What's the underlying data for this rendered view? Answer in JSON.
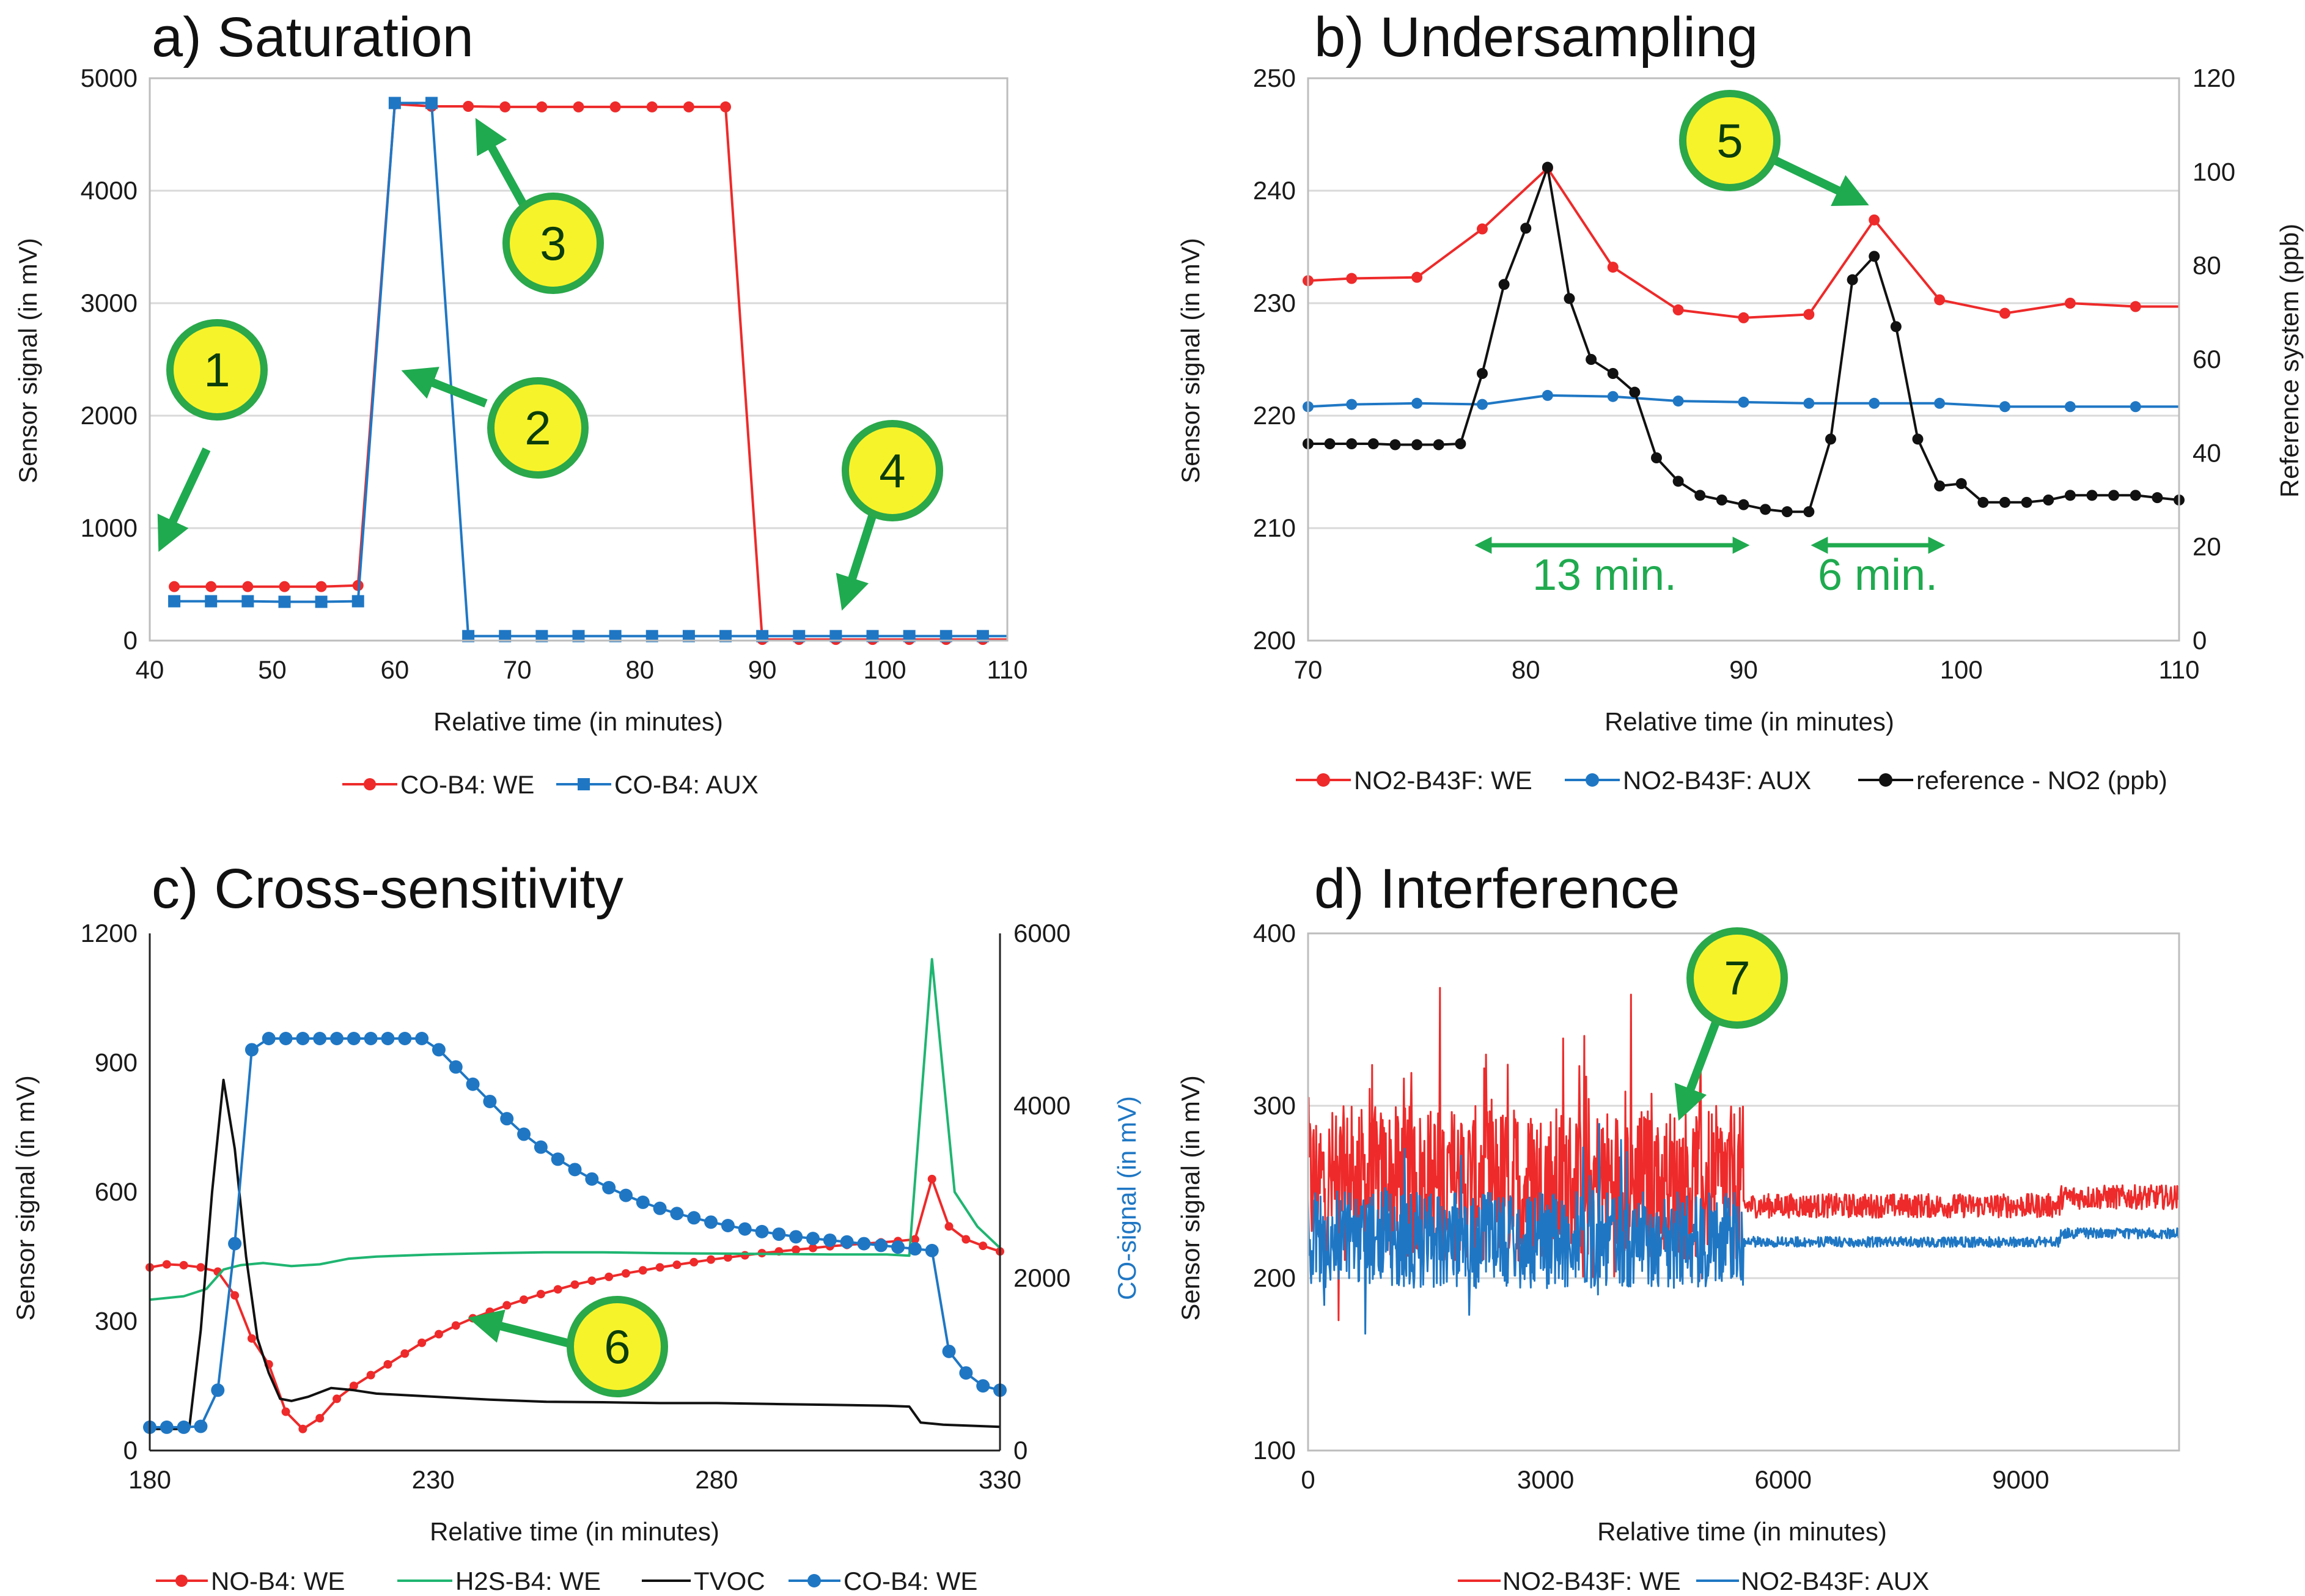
{
  "colors": {
    "red": "#ee2a2a",
    "blue": "#1f77c4",
    "black": "#111111",
    "green_line": "#1fb571",
    "arrow": "#1faa4f",
    "badge_fill": "#f7f32a",
    "badge_stroke": "#2aa84a",
    "grid": "#d9d9d9"
  },
  "chart_data": [
    {
      "id": "a",
      "type": "line",
      "title": "a) Saturation",
      "xlabel": "Relative time (in minutes)",
      "ylabel": "Sensor signal (in mV)",
      "xlim": [
        40,
        110
      ],
      "xticks": [
        40,
        50,
        60,
        70,
        80,
        90,
        100,
        110
      ],
      "ylim": [
        0,
        5000
      ],
      "yticks": [
        0,
        1000,
        2000,
        3000,
        4000,
        5000
      ],
      "grid": true,
      "series": [
        {
          "name": "CO-B4: WE",
          "color": "#ee2a2a",
          "marker": "circle",
          "x": [
            42,
            45,
            48,
            51,
            54,
            57,
            60,
            63,
            66,
            69,
            72,
            75,
            78,
            81,
            84,
            87,
            90,
            93,
            96,
            99,
            102,
            105,
            108
          ],
          "y": [
            480,
            480,
            480,
            480,
            480,
            490,
            4770,
            4750,
            4750,
            4745,
            4745,
            4745,
            4745,
            4745,
            4745,
            4745,
            10,
            10,
            10,
            10,
            10,
            10,
            10
          ],
          "line_extend_to": 110
        },
        {
          "name": "CO-B4: AUX",
          "color": "#1f77c4",
          "marker": "square",
          "x": [
            42,
            45,
            48,
            51,
            54,
            57,
            60,
            63,
            66,
            69,
            72,
            75,
            78,
            81,
            84,
            87,
            90,
            93,
            96,
            99,
            102,
            105,
            108
          ],
          "y": [
            350,
            350,
            350,
            345,
            345,
            350,
            4780,
            4780,
            40,
            40,
            40,
            40,
            40,
            40,
            40,
            40,
            40,
            40,
            40,
            40,
            40,
            40,
            40
          ],
          "line_extend_to": 110
        }
      ],
      "annotations": [
        {
          "label": "1",
          "points_to": [
            42,
            780
          ]
        },
        {
          "label": "2",
          "points_to": [
            62,
            2650
          ]
        },
        {
          "label": "3",
          "points_to": [
            67,
            4700
          ]
        },
        {
          "label": "4",
          "points_to": [
            97,
            300
          ]
        }
      ]
    },
    {
      "id": "b",
      "type": "line",
      "title": "b) Undersampling",
      "xlabel": "Relative time (in minutes)",
      "ylabel": "Sensor signal (in mV)",
      "ylabel_right": "Reference system (ppb)",
      "xlim": [
        70,
        110
      ],
      "xticks": [
        70,
        80,
        90,
        100,
        110
      ],
      "ylim": [
        200,
        250
      ],
      "yticks": [
        200,
        210,
        220,
        230,
        240,
        250
      ],
      "ylim_right": [
        0,
        120
      ],
      "yticks_right": [
        0,
        20,
        40,
        60,
        80,
        100,
        120
      ],
      "grid": true,
      "series": [
        {
          "name": "NO2-B43F: WE",
          "color": "#ee2a2a",
          "marker": "circle",
          "axis": "left",
          "x": [
            70,
            72,
            75,
            78,
            81,
            84,
            87,
            90,
            93,
            96,
            99,
            102,
            105,
            108
          ],
          "y": [
            232,
            232.2,
            232.3,
            236.6,
            242,
            233.2,
            229.4,
            228.7,
            229,
            237.4,
            230.3,
            229.1,
            230,
            229.7
          ],
          "line_extend_to": 110
        },
        {
          "name": "NO2-B43F: AUX",
          "color": "#1f77c4",
          "marker": "circle",
          "axis": "left",
          "x": [
            70,
            72,
            75,
            78,
            81,
            84,
            87,
            90,
            93,
            96,
            99,
            102,
            105,
            108
          ],
          "y": [
            220.8,
            221,
            221.1,
            221,
            221.8,
            221.7,
            221.3,
            221.2,
            221.1,
            221.1,
            221.1,
            220.8,
            220.8,
            220.8
          ],
          "line_extend_to": 110
        },
        {
          "name": "reference - NO2 (ppb)",
          "color": "#111111",
          "marker": "circle",
          "axis": "right",
          "x": [
            70,
            71,
            72,
            73,
            74,
            75,
            76,
            77,
            78,
            79,
            80,
            81,
            82,
            83,
            84,
            85,
            86,
            87,
            88,
            89,
            90,
            91,
            92,
            93,
            94,
            95,
            96,
            97,
            98,
            99,
            100,
            101,
            102,
            103,
            104,
            105,
            106,
            107,
            108,
            109,
            110
          ],
          "y": [
            42,
            42,
            42,
            42,
            41.8,
            41.8,
            41.8,
            42,
            57,
            76,
            88,
            101,
            73,
            60,
            57,
            53,
            39,
            34,
            31,
            30,
            29,
            28,
            27.5,
            27.5,
            43,
            77,
            82,
            67,
            43,
            33,
            33.5,
            29.5,
            29.5,
            29.5,
            30,
            31,
            31,
            31,
            31,
            30.5,
            30
          ]
        }
      ],
      "annotations": [
        {
          "label": "5",
          "points_to": [
            95,
            239
          ]
        },
        {
          "text": "13 min.",
          "span": [
            77,
            90
          ]
        },
        {
          "text": "6 min.",
          "span": [
            93,
            99
          ]
        }
      ]
    },
    {
      "id": "c",
      "type": "line",
      "title": "c) Cross-sensitivity",
      "xlabel": "Relative time (in minutes)",
      "ylabel": "Sensor signal (in mV)",
      "ylabel_right": "CO-signal (in mV)",
      "xlim": [
        180,
        330
      ],
      "xticks": [
        180,
        230,
        280,
        330
      ],
      "ylim": [
        0,
        1200
      ],
      "yticks": [
        0,
        300,
        600,
        900,
        1200
      ],
      "ylim_right": [
        0,
        6000
      ],
      "yticks_right": [
        0,
        2000,
        4000,
        6000
      ],
      "grid": false,
      "series": [
        {
          "name": "NO-B4: WE",
          "color": "#ee2a2a",
          "marker": "circle",
          "axis": "left",
          "x": [
            180,
            183,
            186,
            189,
            192,
            195,
            198,
            201,
            204,
            207,
            210,
            213,
            216,
            219,
            222,
            225,
            228,
            231,
            234,
            237,
            240,
            243,
            246,
            249,
            252,
            255,
            258,
            261,
            264,
            267,
            270,
            273,
            276,
            279,
            282,
            285,
            288,
            291,
            294,
            297,
            300,
            303,
            306,
            309,
            312,
            315,
            318,
            321,
            324,
            327,
            330
          ],
          "y": [
            425,
            432,
            430,
            425,
            415,
            360,
            260,
            200,
            90,
            50,
            75,
            120,
            150,
            175,
            200,
            225,
            250,
            270,
            290,
            307,
            322,
            337,
            350,
            363,
            374,
            385,
            394,
            403,
            411,
            418,
            425,
            431,
            437,
            443,
            448,
            453,
            458,
            462,
            466,
            470,
            474,
            477,
            480,
            483,
            486,
            490,
            630,
            520,
            490,
            475,
            462
          ]
        },
        {
          "name": "H2S-B4: WE",
          "color": "#1fb571",
          "marker": "none",
          "axis": "left",
          "x": [
            180,
            186,
            190,
            193,
            196,
            200,
            205,
            210,
            215,
            220,
            230,
            240,
            250,
            260,
            270,
            280,
            290,
            300,
            310,
            314,
            318,
            322,
            326,
            330
          ],
          "y": [
            350,
            358,
            375,
            420,
            430,
            435,
            428,
            432,
            445,
            450,
            455,
            458,
            460,
            460,
            458,
            457,
            456,
            455,
            455,
            452,
            1140,
            600,
            520,
            470
          ]
        },
        {
          "name": "TVOC",
          "color": "#111111",
          "marker": "none",
          "axis": "left",
          "x": [
            180,
            185,
            187,
            189,
            191,
            193,
            195,
            197,
            199,
            201,
            203,
            205,
            208,
            212,
            216,
            220,
            230,
            240,
            250,
            260,
            270,
            280,
            290,
            300,
            310,
            314,
            316,
            320,
            330
          ],
          "y": [
            50,
            50,
            55,
            280,
            600,
            860,
            700,
            450,
            260,
            180,
            120,
            115,
            125,
            145,
            140,
            132,
            125,
            118,
            113,
            112,
            110,
            110,
            108,
            106,
            104,
            102,
            65,
            60,
            55
          ]
        },
        {
          "name": "CO-B4: WE",
          "color": "#1f77c4",
          "marker": "circle",
          "axis": "right",
          "x": [
            180,
            183,
            186,
            189,
            192,
            195,
            198,
            201,
            204,
            207,
            210,
            213,
            216,
            219,
            222,
            225,
            228,
            231,
            234,
            237,
            240,
            243,
            246,
            249,
            252,
            255,
            258,
            261,
            264,
            267,
            270,
            273,
            276,
            279,
            282,
            285,
            288,
            291,
            294,
            297,
            300,
            303,
            306,
            309,
            312,
            315,
            318,
            321,
            324,
            327,
            330
          ],
          "y": [
            270,
            270,
            270,
            280,
            700,
            2400,
            4650,
            4780,
            4780,
            4780,
            4780,
            4780,
            4780,
            4780,
            4780,
            4780,
            4780,
            4650,
            4450,
            4250,
            4050,
            3850,
            3670,
            3520,
            3380,
            3260,
            3150,
            3050,
            2960,
            2880,
            2810,
            2750,
            2700,
            2650,
            2610,
            2570,
            2540,
            2510,
            2480,
            2460,
            2440,
            2420,
            2400,
            2380,
            2360,
            2340,
            2320,
            1150,
            900,
            750,
            700
          ]
        }
      ],
      "annotations": [
        {
          "label": "6",
          "points_to": [
            241,
            310
          ]
        }
      ]
    },
    {
      "id": "d",
      "type": "line",
      "title": "d) Interference",
      "xlabel": "Relative time (in minutes)",
      "ylabel": "Sensor signal (in mV)",
      "xlim": [
        0,
        11000
      ],
      "xticks": [
        0,
        3000,
        6000,
        9000
      ],
      "ylim": [
        100,
        400
      ],
      "yticks": [
        100,
        200,
        300,
        400
      ],
      "grid": true,
      "series": [
        {
          "name": "NO2-B43F: WE",
          "color": "#ee2a2a",
          "marker": "none",
          "noisy_until": 5500,
          "mean_noisy": 255,
          "amp_noisy": 45,
          "mean_quiet": 242,
          "amp_quiet": 7
        },
        {
          "name": "NO2-B43F: AUX",
          "color": "#1f77c4",
          "marker": "none",
          "noisy_until": 5500,
          "mean_noisy": 222,
          "amp_noisy": 28,
          "mean_quiet": 221,
          "amp_quiet": 3
        }
      ],
      "annotations": [
        {
          "label": "7",
          "points_to": [
            4850,
            320
          ]
        }
      ]
    }
  ]
}
